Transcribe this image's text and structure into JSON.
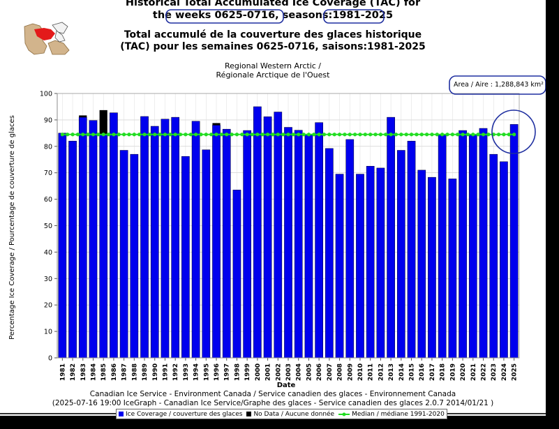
{
  "titles": {
    "line1": "Historical Total Accumulated Ice Coverage (TAC) for",
    "line2_part1": "the weeks 0625-0716,",
    "line2_part2": " seasons:",
    "line2_part3": "1981-2025",
    "line3": "Total accumulé de la couverture des glaces historique",
    "line4": "(TAC) pour les semaines 0625-0716, saisons:1981-2025"
  },
  "region": {
    "line1": "Regional Western Arctic /",
    "line2": "Régionale Arctique de l'Ouest"
  },
  "area": "Area / Aire : 1,288,843 km²",
  "footer": {
    "line1": "Canadian Ice Service - Environment Canada / Service canadien des glaces - Environnement Canada",
    "line2": "(2025-07-16 19:00 IceGraph - Canadian Ice Service/Graphe des glaces - Service canadien des glaces 2.0.7 2014/01/21 )"
  },
  "legend": {
    "coverage": "Ice Coverage / couverture des glaces",
    "nodata": "No Data / Aucune donnée",
    "median": "Median / médiane 1991-2020"
  },
  "colors": {
    "bar": "#0000ee",
    "nodata": "#000000",
    "median": "#22dd22",
    "annotation": "#1f2fa0"
  },
  "chart_data": {
    "type": "bar",
    "xlabel": "Date",
    "ylabel": "Percentage Ice Coverage / Pourcentage de couverture de glaces",
    "ylim": [
      0,
      100
    ],
    "yticks": [
      0,
      10,
      20,
      30,
      40,
      50,
      60,
      70,
      80,
      90,
      100
    ],
    "grid": true,
    "categories": [
      "1981",
      "1982",
      "1983",
      "1984",
      "1985",
      "1986",
      "1987",
      "1988",
      "1989",
      "1990",
      "1991",
      "1992",
      "1993",
      "1994",
      "1995",
      "1996",
      "1997",
      "1998",
      "1999",
      "2000",
      "2001",
      "2002",
      "2003",
      "2004",
      "2005",
      "2006",
      "2007",
      "2008",
      "2009",
      "2010",
      "2011",
      "2012",
      "2013",
      "2014",
      "2015",
      "2016",
      "2017",
      "2018",
      "2019",
      "2020",
      "2021",
      "2022",
      "2023",
      "2024",
      "2025"
    ],
    "series": [
      {
        "name": "Ice Coverage / couverture des glaces",
        "values": [
          85.0,
          82.0,
          91.0,
          89.8,
          84.5,
          92.7,
          78.5,
          77.0,
          91.3,
          87.6,
          90.3,
          91.0,
          76.2,
          89.5,
          78.7,
          88.0,
          86.5,
          63.5,
          86.0,
          95.0,
          91.2,
          93.0,
          87.2,
          86.1,
          84.5,
          89.0,
          79.2,
          69.5,
          82.6,
          69.5,
          72.5,
          71.8,
          91.0,
          78.5,
          82.0,
          71.0,
          68.3,
          84.5,
          67.7,
          86.0,
          84.5,
          86.8,
          77.0,
          74.2,
          88.3
        ]
      },
      {
        "name": "No Data / Aucune donnée",
        "values": [
          0,
          0,
          0.7,
          0,
          9.2,
          0,
          0,
          0,
          0,
          0,
          0,
          0,
          0,
          0,
          0,
          0.8,
          0,
          0,
          0,
          0,
          0,
          0,
          0,
          0,
          0,
          0,
          0,
          0,
          0,
          0,
          0,
          0,
          0,
          0,
          0,
          0,
          0,
          0,
          0,
          0,
          0,
          0,
          0,
          0,
          0
        ]
      },
      {
        "name": "Median / médiane 1991-2020",
        "type": "line",
        "value": 84.5
      }
    ]
  }
}
